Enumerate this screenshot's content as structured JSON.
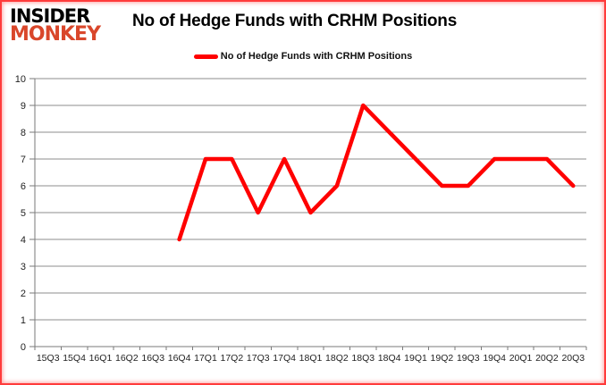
{
  "logo": {
    "line1": "INSIDER",
    "line2": "MONKEY"
  },
  "colors": {
    "line": "#ff0000",
    "grid": "#8c8c8c",
    "axis": "#7a7a7a",
    "tick_text": "#1f1f1f",
    "logo_monkey": "#d9472b",
    "frame": "#ff3b3b"
  },
  "chart_data": {
    "type": "line",
    "title": "No of Hedge Funds with CRHM Positions",
    "xlabel": "",
    "ylabel": "",
    "ylim": [
      0,
      10
    ],
    "yticks": [
      0,
      1,
      2,
      3,
      4,
      5,
      6,
      7,
      8,
      9,
      10
    ],
    "grid": true,
    "legend_position": "top",
    "categories": [
      "15Q3",
      "15Q4",
      "16Q1",
      "16Q2",
      "16Q3",
      "16Q4",
      "17Q1",
      "17Q2",
      "17Q3",
      "17Q4",
      "18Q1",
      "18Q2",
      "18Q3",
      "18Q4",
      "19Q1",
      "19Q2",
      "19Q3",
      "19Q4",
      "20Q1",
      "20Q2",
      "20Q3"
    ],
    "series": [
      {
        "name": "No of Hedge Funds with CRHM Positions",
        "color": "#ff0000",
        "values": [
          null,
          null,
          null,
          null,
          null,
          4,
          7,
          7,
          5,
          7,
          5,
          6,
          9,
          8,
          7,
          6,
          6,
          7,
          7,
          7,
          6
        ]
      }
    ]
  }
}
